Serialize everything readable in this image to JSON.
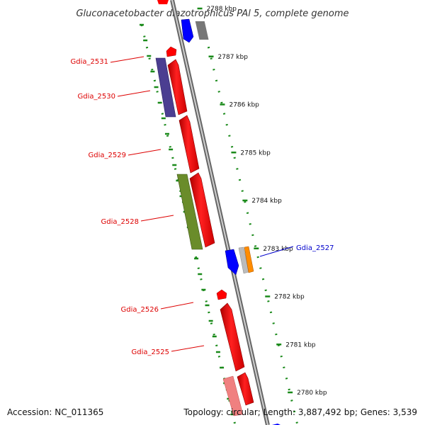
{
  "title": "Gluconacetobacter diazotrophicus PAl 5, complete genome",
  "footer": {
    "accession": "Accession: NC_011365",
    "summary": "Topology: circular; Length: 3,887,492 bp; Genes: 3,539"
  },
  "ticks": [
    {
      "label": "2788 kbp",
      "position_kbp": 2788
    },
    {
      "label": "2787 kbp",
      "position_kbp": 2787
    },
    {
      "label": "2786 kbp",
      "position_kbp": 2786
    },
    {
      "label": "2785 kbp",
      "position_kbp": 2785
    },
    {
      "label": "2784 kbp",
      "position_kbp": 2784
    },
    {
      "label": "2783 kbp",
      "position_kbp": 2783
    },
    {
      "label": "2782 kbp",
      "position_kbp": 2782
    },
    {
      "label": "2781 kbp",
      "position_kbp": 2781
    },
    {
      "label": "2780 kbp",
      "position_kbp": 2780
    }
  ],
  "gene_labels": [
    {
      "label": "Gdia_2531",
      "color": "#dd0000"
    },
    {
      "label": "Gdia_2530",
      "color": "#dd0000"
    },
    {
      "label": "Gdia_2529",
      "color": "#dd0000"
    },
    {
      "label": "Gdia_2528",
      "color": "#dd0000"
    },
    {
      "label": "Gdia_2527",
      "color": "#0000cc"
    },
    {
      "label": "Gdia_2526",
      "color": "#dd0000"
    },
    {
      "label": "Gdia_2525",
      "color": "#dd0000"
    }
  ],
  "colors": {
    "backbone": "#8a8a8a",
    "tick_marks": "#1a8a1a",
    "cds": "#ff0000",
    "cog_blue": "#0000ff",
    "cog_purple": "#4b3e91",
    "cog_green": "#6a8c2a",
    "cog_grey": "#777777",
    "cog_orange": "#ff8c00",
    "cog_pink": "#f08080"
  }
}
